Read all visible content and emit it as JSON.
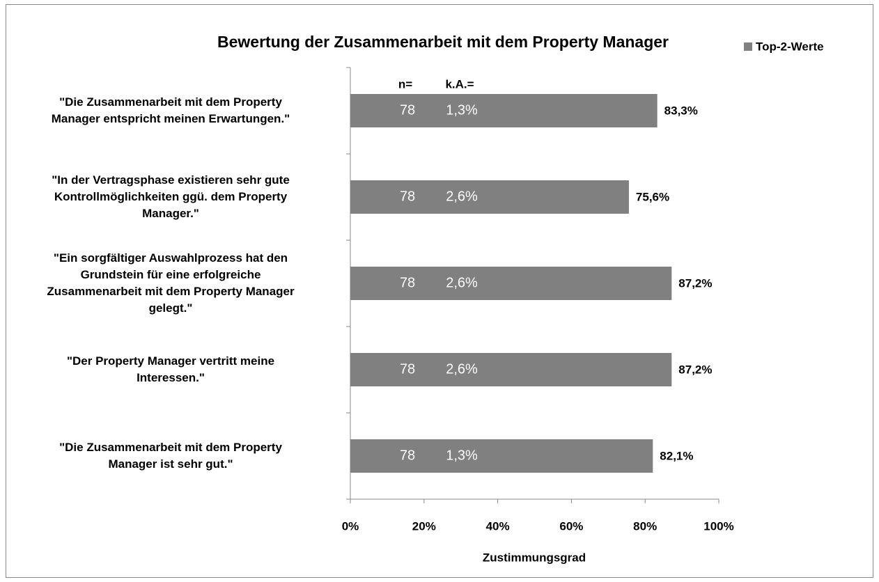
{
  "chart_data": {
    "type": "barh",
    "title": "Bewertung der Zusammenarbeit mit dem Property Manager",
    "categories": [
      "\"Die Zusammenarbeit mit dem Property\nManager entspricht meinen Erwartungen.\"",
      "\"In der Vertragsphase existieren sehr gute\nKontrollmöglichkeiten ggü. dem Property\nManager.\"",
      "\"Ein sorgfältiger Auswahlprozess hat den\nGrundstein für eine erfolgreiche\nZusammenarbeit mit dem Property Manager\ngelegt.\"",
      "\"Der Property Manager vertritt meine\nInteressen.\"",
      "\"Die Zusammenarbeit mit dem Property\nManager ist sehr gut.\""
    ],
    "series": [
      {
        "name": "Top-2-Werte",
        "color": "#808080",
        "values": [
          83.3,
          75.6,
          87.2,
          87.2,
          82.1
        ],
        "value_labels": [
          "83,3%",
          "75,6%",
          "87,2%",
          "87,2%",
          "82,1%"
        ]
      }
    ],
    "n_header": "n=",
    "n": [
      78,
      78,
      78,
      78,
      78
    ],
    "ka_header": "k.A.=",
    "ka": {
      "values": [
        1.3,
        2.6,
        2.6,
        2.6,
        1.3
      ],
      "labels": [
        "1,3%",
        "2,6%",
        "2,6%",
        "2,6%",
        "1,3%"
      ]
    },
    "xlabel": "Zustimmungsgrad",
    "xlim": [
      0,
      100
    ],
    "xticks": [
      {
        "value": 0,
        "label": "0%"
      },
      {
        "value": 20,
        "label": "20%"
      },
      {
        "value": 40,
        "label": "40%"
      },
      {
        "value": 60,
        "label": "60%"
      },
      {
        "value": 80,
        "label": "80%"
      },
      {
        "value": 100,
        "label": "100%"
      }
    ],
    "legend": "top-right",
    "grid": false
  }
}
